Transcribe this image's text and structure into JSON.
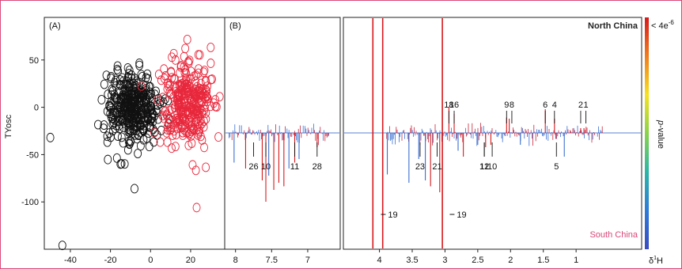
{
  "figure": {
    "accent_border": "#d9477a",
    "panel_a_label": "(A)",
    "panel_b_label": "(B)",
    "nmr_axis_prefix": "δ",
    "nmr_axis_superscript": "1",
    "nmr_axis_suffix": "H",
    "north_label": "North China",
    "south_label": "South China",
    "colorbar_top_label": "< 4e",
    "colorbar_top_exponent": "-6",
    "colorbar_axis_label_italic": "p",
    "colorbar_axis_label_rest": "-value",
    "colorbar_colors": [
      "#d7191c",
      "#f07c1b",
      "#f6e21f",
      "#8ad34a",
      "#2bb6a6",
      "#2c7bd9",
      "#3b4cc0"
    ]
  },
  "chart_data": [
    {
      "type": "scatter",
      "panel": "A",
      "ylabel": "TYosc",
      "xlabel": "",
      "xlim": [
        -53,
        37
      ],
      "ylim": [
        -150,
        95
      ],
      "xticks": [
        -40,
        -20,
        0,
        20
      ],
      "yticks": [
        -100,
        -50,
        0,
        50
      ],
      "marker": "open circle",
      "series": [
        {
          "color": "#111111",
          "cluster": {
            "center": [
              -9,
              -1
            ],
            "spread": [
              6.5,
              19
            ],
            "count": 380
          },
          "points": [
            [
              -50,
              -32
            ],
            [
              -15,
              -60
            ],
            [
              -8,
              -86
            ],
            [
              -44,
              -146
            ]
          ]
        },
        {
          "color": "#e8283c",
          "cluster": {
            "center": [
              18,
              7
            ],
            "spread": [
              6.5,
              22
            ],
            "count": 320
          },
          "points": [
            [
              23,
              -106
            ]
          ]
        }
      ]
    },
    {
      "type": "line",
      "panel": "B",
      "xlabel": "δ1H",
      "x_reversed": true,
      "segments": [
        {
          "xlim": [
            8.15,
            6.55
          ],
          "xticks": [
            8,
            7.5,
            7
          ]
        },
        {
          "xlim": [
            4.55,
            0.0
          ],
          "xticks": [
            4,
            3.5,
            3,
            2.5,
            2,
            1.5,
            1
          ]
        }
      ],
      "series": [
        {
          "name": "North China",
          "color": "#d7191c"
        },
        {
          "name": "South China",
          "color": "#3b6fd1"
        }
      ],
      "peaks": [
        {
          "ppm": 8.02,
          "intensity": -0.25,
          "color": "#3b6fd1"
        },
        {
          "ppm": 7.86,
          "intensity": -0.3,
          "color": "#d7191c"
        },
        {
          "ppm": 7.63,
          "intensity": -0.4,
          "color": "#d7191c"
        },
        {
          "ppm": 7.58,
          "intensity": -0.58,
          "color": "#d7191c"
        },
        {
          "ppm": 7.54,
          "intensity": -0.36,
          "color": "#3b6fd1"
        },
        {
          "ppm": 7.47,
          "intensity": -0.48,
          "color": "#d7191c"
        },
        {
          "ppm": 7.4,
          "intensity": -0.42,
          "color": "#d7191c"
        },
        {
          "ppm": 7.33,
          "intensity": -0.45,
          "color": "#d7191c"
        },
        {
          "ppm": 7.26,
          "intensity": -0.3,
          "color": "#3b6fd1"
        },
        {
          "ppm": 7.18,
          "intensity": -0.25,
          "color": "#d7191c"
        },
        {
          "ppm": 7.12,
          "intensity": -0.22,
          "color": "#3b6fd1"
        },
        {
          "ppm": 6.87,
          "intensity": -0.12,
          "color": "#d7191c"
        },
        {
          "ppm": 4.1,
          "intensity": -1.0,
          "color": "#d7191c"
        },
        {
          "ppm": 3.95,
          "intensity": -1.0,
          "color": "#d7191c"
        },
        {
          "ppm": 3.88,
          "intensity": -0.35,
          "color": "#3b6fd1"
        },
        {
          "ppm": 3.55,
          "intensity": -0.42,
          "color": "#3b6fd1"
        },
        {
          "ppm": 3.4,
          "intensity": -0.22,
          "color": "#3b6fd1"
        },
        {
          "ppm": 3.3,
          "intensity": -0.4,
          "color": "#3b6fd1"
        },
        {
          "ppm": 3.22,
          "intensity": -0.45,
          "color": "#d7191c"
        },
        {
          "ppm": 3.08,
          "intensity": -0.5,
          "color": "#d7191c"
        },
        {
          "ppm": 3.04,
          "intensity": -1.0,
          "color": "#d7191c"
        },
        {
          "ppm": 2.94,
          "intensity": 0.22,
          "color": "#d7191c"
        },
        {
          "ppm": 2.86,
          "intensity": 0.16,
          "color": "#d7191c"
        },
        {
          "ppm": 2.8,
          "intensity": -0.15,
          "color": "#3b6fd1"
        },
        {
          "ppm": 2.72,
          "intensity": -0.2,
          "color": "#d7191c"
        },
        {
          "ppm": 2.5,
          "intensity": -0.1,
          "color": "#3b6fd1"
        },
        {
          "ppm": 2.38,
          "intensity": -0.12,
          "color": "#d7191c"
        },
        {
          "ppm": 2.3,
          "intensity": -0.1,
          "color": "#d7191c"
        },
        {
          "ppm": 2.06,
          "intensity": 0.13,
          "color": "#d7191c"
        },
        {
          "ppm": 2.02,
          "intensity": 0.12,
          "color": "#d7191c"
        },
        {
          "ppm": 1.85,
          "intensity": -0.1,
          "color": "#3b6fd1"
        },
        {
          "ppm": 1.47,
          "intensity": 0.2,
          "color": "#d7191c"
        },
        {
          "ppm": 1.33,
          "intensity": 0.12,
          "color": "#d7191c"
        },
        {
          "ppm": 1.31,
          "intensity": -0.05,
          "color": "#3b6fd1"
        },
        {
          "ppm": 1.18,
          "intensity": -0.2,
          "color": "#3b6fd1"
        },
        {
          "ppm": 0.93,
          "intensity": 0.04,
          "color": "#d7191c"
        },
        {
          "ppm": 0.88,
          "intensity": 0.04,
          "color": "#d7191c"
        }
      ],
      "annotations": [
        {
          "text": "28",
          "ppm": 6.87,
          "pos": "below"
        },
        {
          "text": "11",
          "ppm": 7.18,
          "pos": "below"
        },
        {
          "text": "10",
          "ppm": 7.58,
          "pos": "below"
        },
        {
          "text": "26",
          "ppm": 7.75,
          "pos": "below"
        },
        {
          "text": "23",
          "ppm": 3.38,
          "pos": "below"
        },
        {
          "text": "21",
          "ppm": 3.12,
          "pos": "below"
        },
        {
          "text": "19",
          "ppm": 4.05,
          "pos": "below-right"
        },
        {
          "text": "19",
          "ppm": 3.0,
          "pos": "below-right"
        },
        {
          "text": "18",
          "ppm": 2.94,
          "pos": "above"
        },
        {
          "text": "16",
          "ppm": 2.86,
          "pos": "above"
        },
        {
          "text": "12",
          "ppm": 2.4,
          "pos": "below"
        },
        {
          "text": "11",
          "ppm": 2.4,
          "pos": "below"
        },
        {
          "text": "10",
          "ppm": 2.28,
          "pos": "below"
        },
        {
          "text": "9",
          "ppm": 2.06,
          "pos": "above"
        },
        {
          "text": "8",
          "ppm": 1.98,
          "pos": "above"
        },
        {
          "text": "6",
          "ppm": 1.47,
          "pos": "above"
        },
        {
          "text": "5",
          "ppm": 1.3,
          "pos": "below"
        },
        {
          "text": "4",
          "ppm": 1.33,
          "pos": "above"
        },
        {
          "text": "2",
          "ppm": 0.93,
          "pos": "above"
        },
        {
          "text": "1",
          "ppm": 0.85,
          "pos": "above"
        }
      ]
    }
  ]
}
